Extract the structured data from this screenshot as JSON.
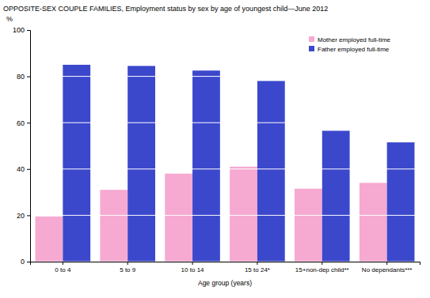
{
  "chart_data": {
    "type": "bar",
    "title": "OPPOSITE-SEX COUPLE FAMILIES, Employment status by sex by age of youngest child—June 2012",
    "y_label": "%",
    "x_label": "Age group (years)",
    "categories": [
      "0 to 4",
      "5 to 9",
      "10 to 14",
      "15 to 24*",
      "15+non-dep child**",
      "No dependants***"
    ],
    "series": [
      {
        "name": "Mother employed full-time",
        "color": "#f6a9d1",
        "values": [
          19.5,
          31,
          38,
          41,
          31.5,
          34
        ]
      },
      {
        "name": "Father employed full-time",
        "color": "#3b48cc",
        "values": [
          85,
          84.5,
          82.5,
          78,
          56.5,
          51.5
        ]
      }
    ],
    "ylim": [
      0,
      100
    ],
    "yticks": [
      0,
      20,
      40,
      60,
      80,
      100
    ],
    "grid": true,
    "legend": "top-right"
  }
}
